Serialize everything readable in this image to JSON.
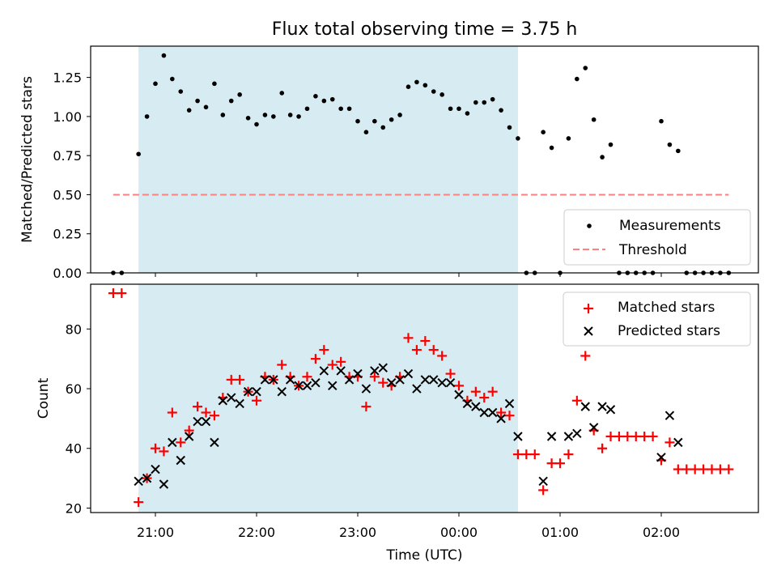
{
  "title": "Flux total observing time = 3.75 h",
  "xlabel": "Time (UTC)",
  "x_ticks": [
    "21:00",
    "22:00",
    "23:00",
    "00:00",
    "01:00",
    "02:00"
  ],
  "shaded_interval": [
    "20:50",
    "00:35"
  ],
  "shade_color": "#add8e6",
  "chart_data": [
    {
      "type": "scatter",
      "ylabel": "Matched/Predicted stars",
      "ylim": [
        0,
        1.45
      ],
      "yticks": [
        "0.00",
        "0.25",
        "0.50",
        "0.75",
        "1.00",
        "1.25"
      ],
      "legend_position": "lower-right",
      "legend": [
        "Measurements",
        "Threshold"
      ],
      "threshold": {
        "name": "Threshold",
        "value": 0.5,
        "x_range": [
          "20:35",
          "02:40"
        ],
        "color": "#ff8080",
        "style": "dashed"
      },
      "series": [
        {
          "name": "Measurements",
          "color": "#000000",
          "marker": "dot",
          "points": [
            [
              "20:35",
              0.0
            ],
            [
              "20:40",
              0.0
            ],
            [
              "20:50",
              0.76
            ],
            [
              "20:55",
              1.0
            ],
            [
              "21:00",
              1.21
            ],
            [
              "21:05",
              1.39
            ],
            [
              "21:10",
              1.24
            ],
            [
              "21:15",
              1.16
            ],
            [
              "21:20",
              1.04
            ],
            [
              "21:25",
              1.1
            ],
            [
              "21:30",
              1.06
            ],
            [
              "21:35",
              1.21
            ],
            [
              "21:40",
              1.01
            ],
            [
              "21:45",
              1.1
            ],
            [
              "21:50",
              1.14
            ],
            [
              "21:55",
              0.99
            ],
            [
              "22:00",
              0.95
            ],
            [
              "22:05",
              1.01
            ],
            [
              "22:10",
              1.0
            ],
            [
              "22:15",
              1.15
            ],
            [
              "22:20",
              1.01
            ],
            [
              "22:25",
              1.0
            ],
            [
              "22:30",
              1.05
            ],
            [
              "22:35",
              1.13
            ],
            [
              "22:40",
              1.1
            ],
            [
              "22:45",
              1.11
            ],
            [
              "22:50",
              1.05
            ],
            [
              "22:55",
              1.05
            ],
            [
              "23:00",
              0.97
            ],
            [
              "23:05",
              0.9
            ],
            [
              "23:10",
              0.97
            ],
            [
              "23:15",
              0.93
            ],
            [
              "23:20",
              0.98
            ],
            [
              "23:25",
              1.01
            ],
            [
              "23:30",
              1.19
            ],
            [
              "23:35",
              1.22
            ],
            [
              "23:40",
              1.2
            ],
            [
              "23:45",
              1.16
            ],
            [
              "23:50",
              1.14
            ],
            [
              "23:55",
              1.05
            ],
            [
              "00:00",
              1.05
            ],
            [
              "00:05",
              1.02
            ],
            [
              "00:10",
              1.09
            ],
            [
              "00:15",
              1.09
            ],
            [
              "00:20",
              1.11
            ],
            [
              "00:25",
              1.04
            ],
            [
              "00:30",
              0.93
            ],
            [
              "00:35",
              0.86
            ],
            [
              "00:40",
              0.0
            ],
            [
              "00:45",
              0.0
            ],
            [
              "00:50",
              0.9
            ],
            [
              "00:55",
              0.8
            ],
            [
              "01:00",
              0.0
            ],
            [
              "01:05",
              0.86
            ],
            [
              "01:10",
              1.24
            ],
            [
              "01:15",
              1.31
            ],
            [
              "01:20",
              0.98
            ],
            [
              "01:25",
              0.74
            ],
            [
              "01:30",
              0.82
            ],
            [
              "01:35",
              0.0
            ],
            [
              "01:40",
              0.0
            ],
            [
              "01:45",
              0.0
            ],
            [
              "01:50",
              0.0
            ],
            [
              "01:55",
              0.0
            ],
            [
              "02:00",
              0.97
            ],
            [
              "02:05",
              0.82
            ],
            [
              "02:10",
              0.78
            ],
            [
              "02:15",
              0.0
            ],
            [
              "02:20",
              0.0
            ],
            [
              "02:25",
              0.0
            ],
            [
              "02:30",
              0.0
            ],
            [
              "02:35",
              0.0
            ],
            [
              "02:40",
              0.0
            ]
          ]
        }
      ]
    },
    {
      "type": "scatter",
      "ylabel": "Count",
      "ylim": [
        18.5,
        95
      ],
      "yticks": [
        "20",
        "40",
        "60",
        "80"
      ],
      "legend_position": "upper-right",
      "legend": [
        "Matched stars",
        "Predicted stars"
      ],
      "series": [
        {
          "name": "Matched stars",
          "color": "#ff0000",
          "marker": "plus",
          "points": [
            [
              "20:35",
              92
            ],
            [
              "20:40",
              92
            ],
            [
              "20:50",
              22
            ],
            [
              "20:55",
              30
            ],
            [
              "21:00",
              40
            ],
            [
              "21:05",
              39
            ],
            [
              "21:10",
              52
            ],
            [
              "21:15",
              42
            ],
            [
              "21:20",
              46
            ],
            [
              "21:25",
              54
            ],
            [
              "21:30",
              52
            ],
            [
              "21:35",
              51
            ],
            [
              "21:40",
              57
            ],
            [
              "21:45",
              63
            ],
            [
              "21:50",
              63
            ],
            [
              "21:55",
              59
            ],
            [
              "22:00",
              56
            ],
            [
              "22:05",
              64
            ],
            [
              "22:10",
              63
            ],
            [
              "22:15",
              68
            ],
            [
              "22:20",
              64
            ],
            [
              "22:25",
              61
            ],
            [
              "22:30",
              64
            ],
            [
              "22:35",
              70
            ],
            [
              "22:40",
              73
            ],
            [
              "22:45",
              68
            ],
            [
              "22:50",
              69
            ],
            [
              "22:55",
              64
            ],
            [
              "23:00",
              64
            ],
            [
              "23:05",
              54
            ],
            [
              "23:10",
              64
            ],
            [
              "23:15",
              62
            ],
            [
              "23:20",
              61
            ],
            [
              "23:25",
              64
            ],
            [
              "23:30",
              77
            ],
            [
              "23:35",
              73
            ],
            [
              "23:40",
              76
            ],
            [
              "23:45",
              73
            ],
            [
              "23:50",
              71
            ],
            [
              "23:55",
              65
            ],
            [
              "00:00",
              61
            ],
            [
              "00:05",
              56
            ],
            [
              "00:10",
              59
            ],
            [
              "00:15",
              57
            ],
            [
              "00:20",
              59
            ],
            [
              "00:25",
              52
            ],
            [
              "00:30",
              51
            ],
            [
              "00:35",
              38
            ],
            [
              "00:40",
              38
            ],
            [
              "00:45",
              38
            ],
            [
              "00:50",
              26
            ],
            [
              "00:55",
              35
            ],
            [
              "01:00",
              35
            ],
            [
              "01:05",
              38
            ],
            [
              "01:10",
              56
            ],
            [
              "01:15",
              71
            ],
            [
              "01:20",
              46
            ],
            [
              "01:25",
              40
            ],
            [
              "01:30",
              44
            ],
            [
              "01:35",
              44
            ],
            [
              "01:40",
              44
            ],
            [
              "01:45",
              44
            ],
            [
              "01:50",
              44
            ],
            [
              "01:55",
              44
            ],
            [
              "02:00",
              36
            ],
            [
              "02:05",
              42
            ],
            [
              "02:10",
              33
            ],
            [
              "02:15",
              33
            ],
            [
              "02:20",
              33
            ],
            [
              "02:25",
              33
            ],
            [
              "02:30",
              33
            ],
            [
              "02:35",
              33
            ],
            [
              "02:40",
              33
            ]
          ]
        },
        {
          "name": "Predicted stars",
          "color": "#000000",
          "marker": "cross",
          "points": [
            [
              "20:50",
              29
            ],
            [
              "20:55",
              30
            ],
            [
              "21:00",
              33
            ],
            [
              "21:05",
              28
            ],
            [
              "21:10",
              42
            ],
            [
              "21:15",
              36
            ],
            [
              "21:20",
              44
            ],
            [
              "21:25",
              49
            ],
            [
              "21:30",
              49
            ],
            [
              "21:35",
              42
            ],
            [
              "21:40",
              56
            ],
            [
              "21:45",
              57
            ],
            [
              "21:50",
              55
            ],
            [
              "21:55",
              59
            ],
            [
              "22:00",
              59
            ],
            [
              "22:05",
              63
            ],
            [
              "22:10",
              63
            ],
            [
              "22:15",
              59
            ],
            [
              "22:20",
              63
            ],
            [
              "22:25",
              61
            ],
            [
              "22:30",
              61
            ],
            [
              "22:35",
              62
            ],
            [
              "22:40",
              66
            ],
            [
              "22:45",
              61
            ],
            [
              "22:50",
              66
            ],
            [
              "22:55",
              63
            ],
            [
              "23:00",
              65
            ],
            [
              "23:05",
              60
            ],
            [
              "23:10",
              66
            ],
            [
              "23:15",
              67
            ],
            [
              "23:20",
              62
            ],
            [
              "23:25",
              63
            ],
            [
              "23:30",
              65
            ],
            [
              "23:35",
              60
            ],
            [
              "23:40",
              63
            ],
            [
              "23:45",
              63
            ],
            [
              "23:50",
              62
            ],
            [
              "23:55",
              62
            ],
            [
              "00:00",
              58
            ],
            [
              "00:05",
              55
            ],
            [
              "00:10",
              54
            ],
            [
              "00:15",
              52
            ],
            [
              "00:20",
              52
            ],
            [
              "00:25",
              50
            ],
            [
              "00:30",
              55
            ],
            [
              "00:35",
              44
            ],
            [
              "00:50",
              29
            ],
            [
              "00:55",
              44
            ],
            [
              "01:05",
              44
            ],
            [
              "01:10",
              45
            ],
            [
              "01:15",
              54
            ],
            [
              "01:20",
              47
            ],
            [
              "01:25",
              54
            ],
            [
              "01:30",
              53
            ],
            [
              "02:00",
              37
            ],
            [
              "02:05",
              51
            ],
            [
              "02:10",
              42
            ]
          ]
        }
      ]
    }
  ]
}
